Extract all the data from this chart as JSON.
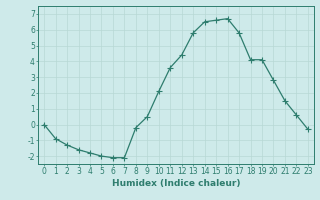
{
  "x": [
    0,
    1,
    2,
    3,
    4,
    5,
    6,
    7,
    8,
    9,
    10,
    11,
    12,
    13,
    14,
    15,
    16,
    17,
    18,
    19,
    20,
    21,
    22,
    23
  ],
  "y": [
    0,
    -0.9,
    -1.3,
    -1.6,
    -1.8,
    -2.0,
    -2.1,
    -2.1,
    -0.2,
    0.5,
    2.1,
    3.6,
    4.4,
    5.8,
    6.5,
    6.6,
    6.7,
    5.8,
    4.1,
    4.1,
    2.8,
    1.5,
    0.6,
    -0.3
  ],
  "line_color": "#2e7d6e",
  "marker": "+",
  "markersize": 4,
  "linewidth": 0.9,
  "background_color": "#ceeaea",
  "grid_color": "#b8d8d5",
  "xlabel": "Humidex (Indice chaleur)",
  "xlabel_fontsize": 6.5,
  "tick_fontsize": 5.5,
  "xlim": [
    -0.5,
    23.5
  ],
  "ylim": [
    -2.5,
    7.5
  ],
  "yticks": [
    -2,
    -1,
    0,
    1,
    2,
    3,
    4,
    5,
    6,
    7
  ],
  "xticks": [
    0,
    1,
    2,
    3,
    4,
    5,
    6,
    7,
    8,
    9,
    10,
    11,
    12,
    13,
    14,
    15,
    16,
    17,
    18,
    19,
    20,
    21,
    22,
    23
  ]
}
